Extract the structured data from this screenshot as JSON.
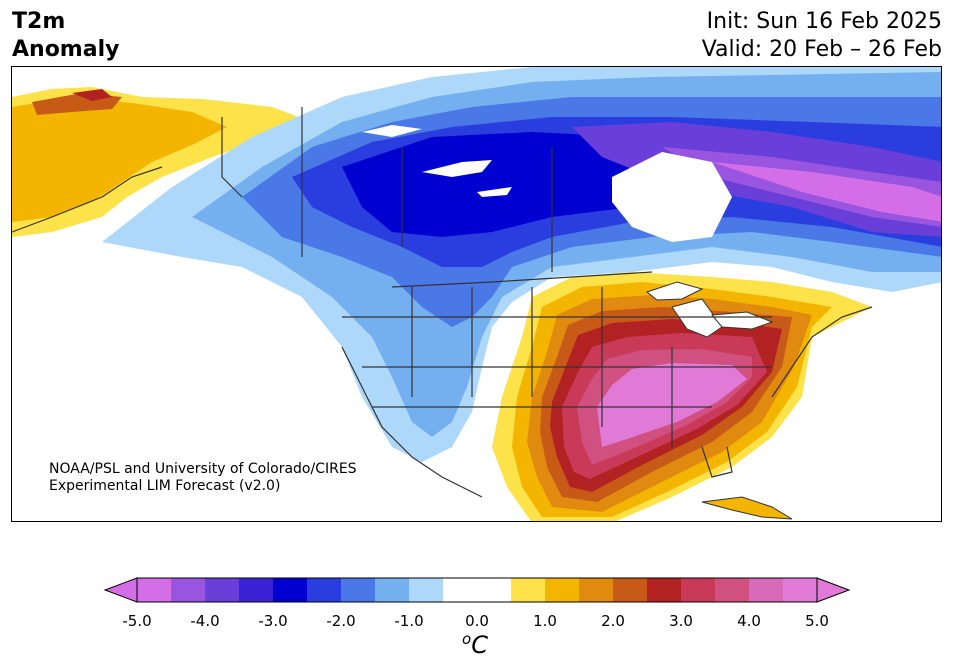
{
  "header": {
    "title_line1": "T2m",
    "title_line2": "Anomaly",
    "init_label": "Init: Sun 16 Feb 2025",
    "valid_label": "Valid: 20 Feb – 26 Feb"
  },
  "credit": {
    "line1": "NOAA/PSL and University of Colorado/CIRES",
    "line2": "Experimental LIM Forecast (v2.0)"
  },
  "colorbar": {
    "unit_super": "o",
    "unit": "C",
    "ticks": [
      "-5.0",
      "-4.0",
      "-3.0",
      "-2.0",
      "-1.0",
      "0.0",
      "1.0",
      "2.0",
      "3.0",
      "4.0",
      "5.0"
    ],
    "colors": [
      "#d46ee8",
      "#9a55e0",
      "#6a3ed8",
      "#3a22d4",
      "#0000d0",
      "#2a3ee0",
      "#4a78e6",
      "#74afef",
      "#aed8fa",
      "#ffffff",
      "#ffffff",
      "#fde24a",
      "#f3b500",
      "#e08a10",
      "#c85a18",
      "#b22222",
      "#c83a58",
      "#d05080",
      "#d868b8",
      "#e07ad6"
    ],
    "extend_low_color": "#d46ee8",
    "extend_high_color": "#e07ad6"
  }
}
